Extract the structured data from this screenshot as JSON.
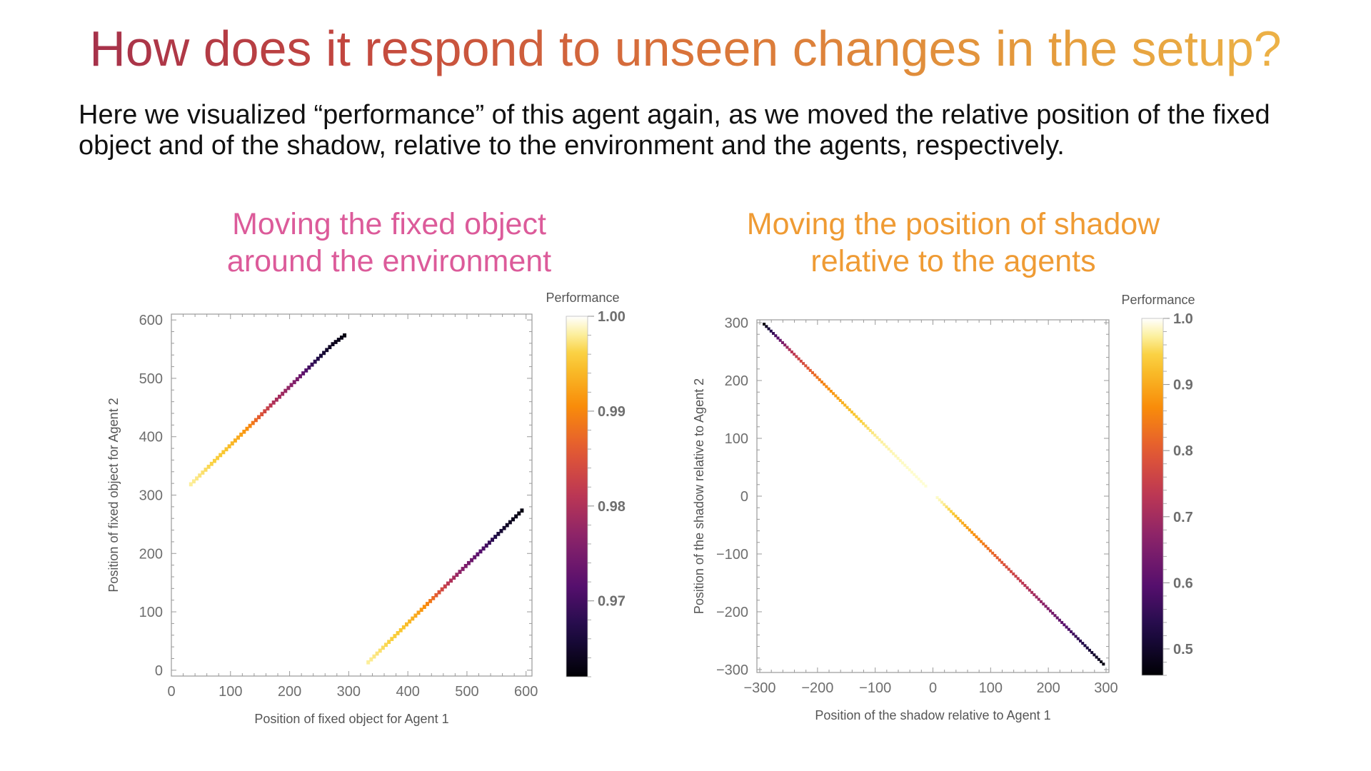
{
  "slide": {
    "title": "How does it respond to unseen changes in the setup?",
    "subtitle": "Here we visualized “performance” of this agent again, as we moved the relative position of the fixed object and of the shadow, relative to the environment and the agents, respectively.",
    "left_heading_line1": "Moving the fixed object",
    "left_heading_line2": "around the environment",
    "right_heading_line1": "Moving the position of shadow",
    "right_heading_line2": "relative to the agents",
    "left_heading_color": "#dc5b9a",
    "right_heading_color": "#ef9b34"
  },
  "chart_data": [
    {
      "type": "heatmap",
      "xlabel": "Position of fixed object for Agent 1",
      "ylabel": "Position of fixed object for Agent 2",
      "xlim": [
        0,
        610
      ],
      "ylim": [
        -10,
        610
      ],
      "xticks": [
        0,
        100,
        200,
        300,
        400,
        500,
        600
      ],
      "yticks": [
        0,
        100,
        200,
        300,
        400,
        500,
        600
      ],
      "background": "white (performance 1.00)",
      "colorbar": {
        "title": "Performance",
        "range": [
          0.962,
          1.0
        ],
        "ticks": [
          1.0,
          0.99,
          0.98,
          0.97
        ],
        "tick_labels": [
          "1.00",
          "0.99",
          "0.98",
          "0.97"
        ],
        "colormap": "inferno"
      },
      "series": [
        {
          "segment": "upper diagonal",
          "x": [
            30,
            50,
            70,
            90,
            110,
            130,
            150,
            170,
            190,
            210,
            230,
            250,
            270,
            290
          ],
          "y": [
            315,
            335,
            355,
            375,
            395,
            415,
            435,
            455,
            475,
            495,
            515,
            535,
            555,
            570
          ],
          "performance": [
            0.998,
            0.997,
            0.996,
            0.995,
            0.993,
            0.99,
            0.985,
            0.98,
            0.978,
            0.975,
            0.97,
            0.966,
            0.964,
            0.963
          ]
        },
        {
          "segment": "lower diagonal",
          "x": [
            330,
            350,
            370,
            390,
            410,
            430,
            450,
            470,
            490,
            510,
            530,
            550,
            570,
            590
          ],
          "y": [
            10,
            30,
            50,
            70,
            90,
            110,
            130,
            150,
            170,
            190,
            210,
            230,
            250,
            270
          ],
          "performance": [
            0.998,
            0.997,
            0.996,
            0.995,
            0.993,
            0.99,
            0.985,
            0.98,
            0.976,
            0.973,
            0.97,
            0.966,
            0.964,
            0.963
          ]
        }
      ]
    },
    {
      "type": "heatmap",
      "xlabel": "Position of the shadow relative to Agent 1",
      "ylabel": "Position of the shadow relative to Agent 2",
      "xlim": [
        -305,
        305
      ],
      "ylim": [
        -305,
        305
      ],
      "xticks": [
        -300,
        -200,
        -100,
        0,
        100,
        200,
        300
      ],
      "yticks": [
        -300,
        -200,
        -100,
        0,
        100,
        200,
        300
      ],
      "background": "white (performance 1.0)",
      "colorbar": {
        "title": "Performance",
        "range": [
          0.46,
          1.0
        ],
        "ticks": [
          1.0,
          0.9,
          0.8,
          0.7,
          0.6,
          0.5
        ],
        "tick_labels": [
          "1.0",
          "0.9",
          "0.8",
          "0.7",
          "0.6",
          "0.5"
        ],
        "colormap": "inferno"
      },
      "series": [
        {
          "segment": "anti-diagonal (x = -y)",
          "x": [
            -295,
            -250,
            -200,
            -150,
            -100,
            -50,
            0,
            50,
            100,
            150,
            200,
            250,
            295
          ],
          "performance": [
            0.47,
            0.72,
            0.84,
            0.92,
            0.97,
            0.99,
            1.0,
            0.9,
            0.82,
            0.74,
            0.65,
            0.55,
            0.47
          ]
        }
      ]
    }
  ]
}
